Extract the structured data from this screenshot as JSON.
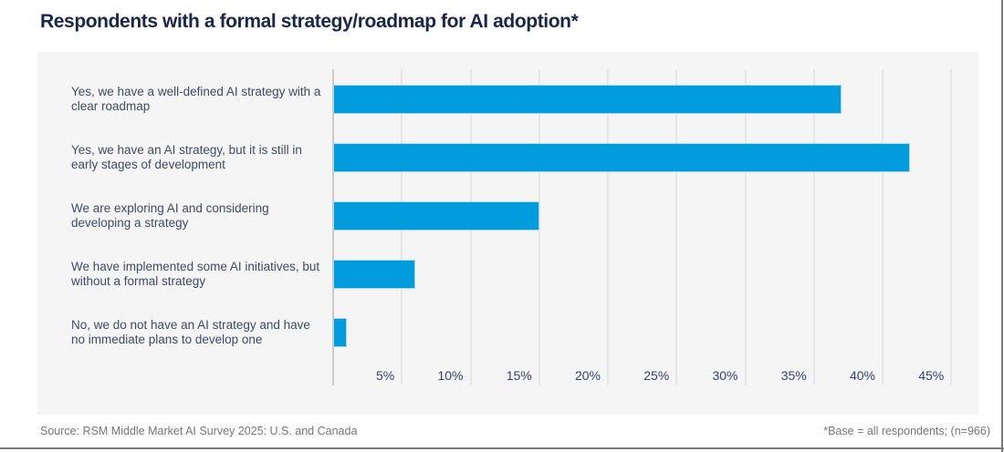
{
  "title": "Respondents with a formal strategy/roadmap for AI adoption*",
  "chart_data": {
    "type": "bar",
    "orientation": "horizontal",
    "title": "Respondents with a formal strategy/roadmap for AI adoption*",
    "categories": [
      "Yes, we have a well-defined AI strategy with a clear roadmap",
      "Yes, we have an AI strategy, but it is still in early stages of development",
      "We are exploring AI and considering developing a strategy",
      "We have implemented some AI initiatives, but without a formal strategy",
      "No, we do not have an AI strategy and have no immediate plans to develop one"
    ],
    "values": [
      37,
      42,
      15,
      6,
      1
    ],
    "unit": "%",
    "xlabel": "",
    "ylabel": "",
    "xlim": [
      0,
      47
    ],
    "x_tick_values": [
      5,
      10,
      15,
      20,
      25,
      30,
      35,
      40,
      45
    ],
    "x_tick_labels": [
      "5%",
      "10%",
      "15%",
      "20%",
      "25%",
      "30%",
      "35%",
      "40%",
      "45%"
    ],
    "grid": true,
    "legend": false,
    "bar_color": "#009CDE",
    "data_labels": false
  },
  "footer": {
    "source": "Source: RSM Middle Market AI Survey 2025: U.S. and Canada",
    "base_note": "*Base = all respondents; (n=966)"
  },
  "colors": {
    "title": "#17264A",
    "category_label": "#3F4A63",
    "tick_label": "#33436A",
    "bar": "#009CDE",
    "panel_background": "#F5F5F6",
    "gridline": "#E5E6E8",
    "axis_line": "#C9CACD",
    "footer_text": "#74767B",
    "frame_border": "#797B7F"
  }
}
